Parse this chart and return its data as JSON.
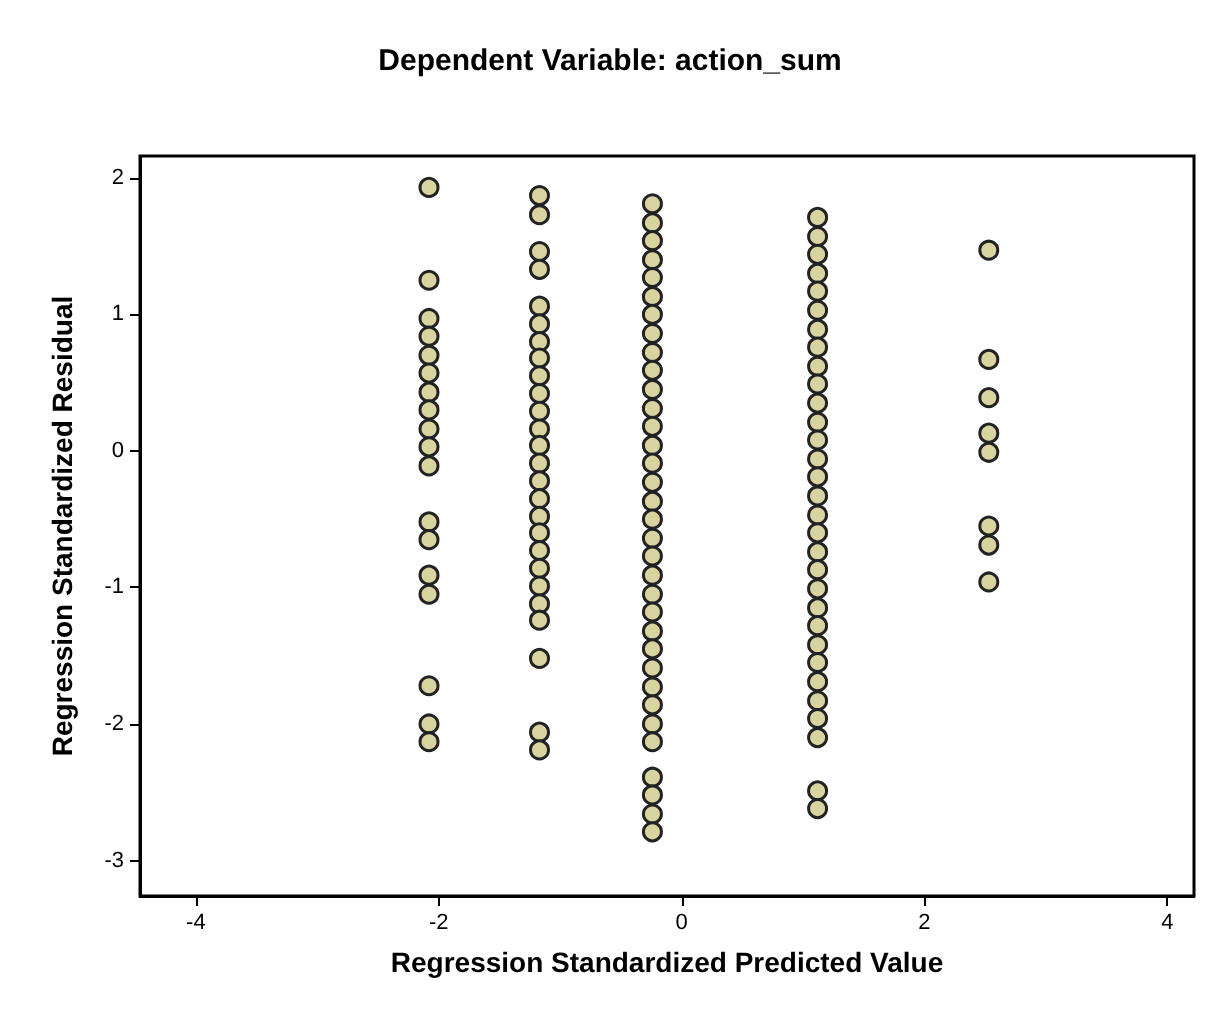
{
  "chart_data": {
    "type": "scatter",
    "title": "Dependent Variable: action_sum",
    "xlabel": "Regression Standardized Predicted Value",
    "ylabel": "Regression Standardized Residual",
    "x": [
      -2.08,
      -2.08,
      -2.08,
      -2.08,
      -2.08,
      -2.08,
      -2.08,
      -2.08,
      -2.08,
      -2.08,
      -2.08,
      -2.08,
      -2.08,
      -2.08,
      -2.08,
      -2.08,
      -2.08,
      -2.08,
      -1.17,
      -1.17,
      -1.17,
      -1.17,
      -1.17,
      -1.17,
      -1.17,
      -1.17,
      -1.17,
      -1.17,
      -1.17,
      -1.17,
      -1.17,
      -1.17,
      -1.17,
      -1.17,
      -1.17,
      -1.17,
      -1.17,
      -1.17,
      -1.17,
      -1.17,
      -1.17,
      -1.17,
      -1.17,
      -1.17,
      -0.24,
      -0.24,
      -0.24,
      -0.24,
      -0.24,
      -0.24,
      -0.24,
      -0.24,
      -0.24,
      -0.24,
      -0.24,
      -0.24,
      -0.24,
      -0.24,
      -0.24,
      -0.24,
      -0.24,
      -0.24,
      -0.24,
      -0.24,
      -0.24,
      -0.24,
      -0.24,
      -0.24,
      -0.24,
      -0.24,
      -0.24,
      -0.24,
      -0.24,
      -0.24,
      -0.24,
      -0.24,
      -0.24,
      -0.24,
      1.12,
      1.12,
      1.12,
      1.12,
      1.12,
      1.12,
      1.12,
      1.12,
      1.12,
      1.12,
      1.12,
      1.12,
      1.12,
      1.12,
      1.12,
      1.12,
      1.12,
      1.12,
      1.12,
      1.12,
      1.12,
      1.12,
      1.12,
      1.12,
      1.12,
      1.12,
      1.12,
      1.12,
      1.12,
      1.12,
      1.12,
      2.53,
      2.53,
      2.53,
      2.53,
      2.53,
      2.53,
      2.53,
      2.53
    ],
    "values": [
      1.93,
      1.25,
      0.97,
      0.84,
      0.7,
      0.57,
      0.43,
      0.3,
      0.16,
      0.03,
      -0.11,
      -0.52,
      -0.65,
      -0.91,
      -1.05,
      -1.72,
      -2.0,
      -2.13,
      1.87,
      1.73,
      1.46,
      1.33,
      1.06,
      0.93,
      0.8,
      0.68,
      0.55,
      0.42,
      0.29,
      0.16,
      0.04,
      -0.09,
      -0.22,
      -0.35,
      -0.48,
      -0.6,
      -0.73,
      -0.86,
      -0.99,
      -1.12,
      -1.24,
      -1.52,
      -2.06,
      -2.19,
      1.81,
      1.67,
      1.54,
      1.4,
      1.27,
      1.13,
      1.0,
      0.86,
      0.72,
      0.59,
      0.45,
      0.31,
      0.18,
      0.04,
      -0.09,
      -0.23,
      -0.37,
      -0.5,
      -0.64,
      -0.77,
      -0.91,
      -1.05,
      -1.18,
      -1.32,
      -1.45,
      -1.59,
      -1.73,
      -1.86,
      -2.0,
      -2.13,
      -2.39,
      -2.52,
      -2.66,
      -2.79,
      1.71,
      1.57,
      1.44,
      1.3,
      1.17,
      1.03,
      0.89,
      0.76,
      0.62,
      0.49,
      0.35,
      0.21,
      0.08,
      -0.06,
      -0.19,
      -0.33,
      -0.47,
      -0.6,
      -0.74,
      -0.87,
      -1.01,
      -1.15,
      -1.28,
      -1.42,
      -1.55,
      -1.69,
      -1.83,
      -1.96,
      -2.1,
      -2.49,
      -2.62,
      1.47,
      0.67,
      0.39,
      0.13,
      -0.01,
      -0.55,
      -0.69,
      -0.96
    ],
    "color": "#d8d4a0",
    "marker": "circle",
    "grid": false,
    "xlim": [
      -4.46,
      4.22
    ],
    "xticks": [
      -4,
      -2,
      0,
      2,
      4
    ],
    "ylim": [
      -3.26,
      2.16
    ],
    "yticks": [
      -3,
      -2,
      -1,
      0,
      1,
      2
    ]
  }
}
